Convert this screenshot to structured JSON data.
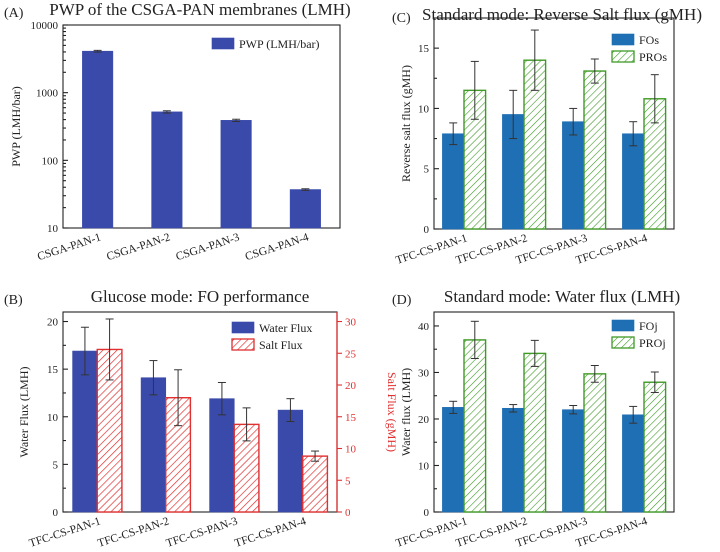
{
  "chart_data": [
    {
      "id": "A",
      "panel_label": "(A)",
      "type": "bar",
      "title": "PWP of the CSGA-PAN membranes (LMH)",
      "xlabel": "",
      "ylabel": "PWP (LMH/bar)",
      "yscale": "log",
      "ylim": [
        10,
        10000
      ],
      "yticks": [
        10,
        100,
        1000,
        10000
      ],
      "legend_position": "top-right",
      "categories": [
        "CSGA-PAN-1",
        "CSGA-PAN-2",
        "CSGA-PAN-3",
        "CSGA-PAN-4"
      ],
      "series": [
        {
          "name": "PWP (LMH/bar)",
          "color": "#3a4aaa",
          "pattern": "solid",
          "values": [
            4100,
            520,
            390,
            37
          ],
          "errors": [
            120,
            20,
            15,
            1
          ]
        }
      ]
    },
    {
      "id": "B",
      "panel_label": "(B)",
      "type": "bar",
      "title": "Glucose mode: FO performance",
      "xlabel": "",
      "ylabel": "Water Flux (LMH)",
      "ylim": [
        0,
        21
      ],
      "yticks": [
        0,
        5,
        10,
        15,
        20
      ],
      "y2label": "Salt Flux (gMH)",
      "y2lim": [
        0,
        31.5
      ],
      "y2ticks": [
        0,
        5,
        10,
        15,
        20,
        25,
        30
      ],
      "y2color": "#e03030",
      "legend_position": "top-right",
      "categories": [
        "TFC-CS-PAN-1",
        "TFC-CS-PAN-2",
        "TFC-CS-PAN-3",
        "TFC-CS-PAN-4"
      ],
      "series": [
        {
          "name": "Water Flux",
          "color": "#3a4aaa",
          "pattern": "solid",
          "axis": "left",
          "values": [
            16.9,
            14.1,
            11.9,
            10.7
          ],
          "errors": [
            2.5,
            1.8,
            1.7,
            1.2
          ]
        },
        {
          "name": "Salt Flux",
          "color": "#e03030",
          "pattern": "hatch",
          "axis": "right",
          "values": [
            25.6,
            18.0,
            13.8,
            8.8
          ],
          "errors": [
            4.8,
            4.4,
            2.6,
            0.8
          ]
        }
      ]
    },
    {
      "id": "C",
      "panel_label": "(C)",
      "type": "bar",
      "title": "Standard mode: Reverse Salt flux (gMH)",
      "xlabel": "",
      "ylabel": "Reverse salt flux (gMH)",
      "ylim": [
        0,
        17.5
      ],
      "yticks": [
        0,
        5,
        10,
        15
      ],
      "legend_position": "top-right",
      "categories": [
        "TFC-CS-PAN-1",
        "TFC-CS-PAN-2",
        "TFC-CS-PAN-3",
        "TFC-CS-PAN-4"
      ],
      "series": [
        {
          "name": "FOs",
          "color": "#1f6fb5",
          "pattern": "solid",
          "values": [
            7.9,
            9.5,
            8.9,
            7.9
          ],
          "errors": [
            0.9,
            2.0,
            1.1,
            1.0
          ]
        },
        {
          "name": "PROs",
          "color": "#3f9a25",
          "pattern": "hatch",
          "values": [
            11.5,
            14.0,
            13.1,
            10.8
          ],
          "errors": [
            2.4,
            2.5,
            1.0,
            2.0
          ]
        }
      ]
    },
    {
      "id": "D",
      "panel_label": "(D)",
      "type": "bar",
      "title": "Standard mode: Water flux (LMH)",
      "xlabel": "",
      "ylabel": "Water flux (LMH)",
      "ylim": [
        0,
        43
      ],
      "yticks": [
        0,
        10,
        20,
        30,
        40
      ],
      "legend_position": "top-right",
      "categories": [
        "TFC-CS-PAN-1",
        "TFC-CS-PAN-2",
        "TFC-CS-PAN-3",
        "TFC-CS-PAN-4"
      ],
      "series": [
        {
          "name": "FOj",
          "color": "#1f6fb5",
          "pattern": "solid",
          "values": [
            22.5,
            22.3,
            22.0,
            20.9
          ],
          "errors": [
            1.3,
            0.8,
            0.9,
            1.8
          ]
        },
        {
          "name": "PROj",
          "color": "#3f9a25",
          "pattern": "hatch",
          "values": [
            37.0,
            34.1,
            29.7,
            27.9
          ],
          "errors": [
            4.0,
            2.8,
            1.8,
            2.2
          ]
        }
      ]
    }
  ]
}
